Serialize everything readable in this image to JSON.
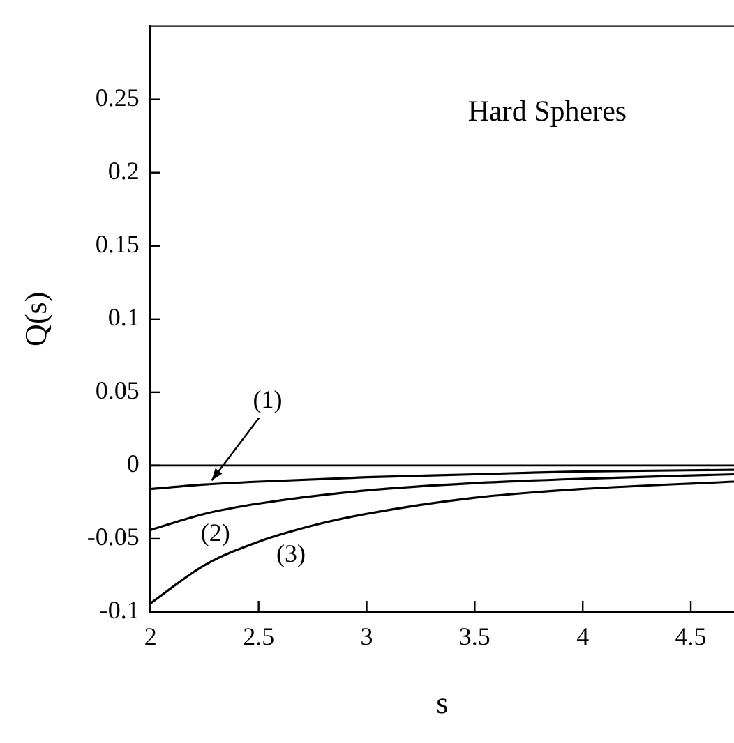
{
  "chart_data": {
    "type": "line",
    "xlabel": "s",
    "ylabel": "Q(s)",
    "xlim": [
      2,
      4.7
    ],
    "xticks": [
      2,
      2.5,
      3,
      3.5,
      4,
      4.5
    ],
    "ylim": [
      -0.1,
      0.3
    ],
    "yticks": [
      -0.1,
      -0.05,
      0,
      0.05,
      0.1,
      0.15,
      0.2,
      0.25
    ],
    "series": [
      {
        "color": "#000000",
        "x": [
          2,
          2.25,
          2.5,
          3,
          3.5,
          4,
          4.7
        ],
        "values": [
          -0.016,
          -0.013,
          -0.011,
          -0.008,
          -0.006,
          -0.004,
          -0.003
        ]
      },
      {
        "color": "#000000",
        "x": [
          2,
          2.25,
          2.5,
          3,
          3.5,
          4,
          4.7
        ],
        "values": [
          -0.044,
          -0.033,
          -0.026,
          -0.017,
          -0.012,
          -0.009,
          -0.006
        ]
      },
      {
        "color": "#000000",
        "x": [
          2,
          2.25,
          2.5,
          2.75,
          3,
          3.5,
          4,
          4.7
        ],
        "values": [
          -0.094,
          -0.068,
          -0.052,
          -0.041,
          -0.033,
          -0.022,
          -0.016,
          -0.011
        ]
      }
    ],
    "ref_lines": [
      {
        "axis": "y",
        "value": 0,
        "color": "#000000"
      }
    ],
    "annotations": [
      {
        "text": "(1)",
        "x": 2.27,
        "y": -0.013
      },
      {
        "text": "(2)",
        "x": 2.3,
        "y": -0.031
      },
      {
        "text": "(3)",
        "x": 2.65,
        "y": -0.045
      },
      "Hard Spheres"
    ],
    "grid": false,
    "legend": false,
    "marker": "none",
    "line_style": "solid"
  }
}
